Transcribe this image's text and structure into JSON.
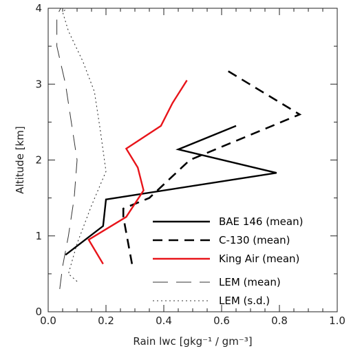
{
  "chart_data": {
    "type": "line",
    "xlabel": "Rain lwc [gkg⁻¹ / gm⁻³]",
    "ylabel": "Altitude [km]",
    "xlim": [
      0.0,
      1.0
    ],
    "ylim": [
      0,
      4
    ],
    "x_ticks": [
      "0.0",
      "0.2",
      "0.4",
      "0.6",
      "0.8",
      "1.0"
    ],
    "x_tick_values": [
      0.0,
      0.2,
      0.4,
      0.6,
      0.8,
      1.0
    ],
    "y_ticks": [
      "0",
      "1",
      "2",
      "3",
      "4"
    ],
    "y_tick_values": [
      0,
      1,
      2,
      3,
      4
    ],
    "grid": false,
    "legend_position": "bottom-right",
    "series": [
      {
        "name": "BAE 146 (mean)",
        "color": "#000000",
        "style": "solid",
        "points": [
          [
            0.06,
            0.75
          ],
          [
            0.19,
            1.13
          ],
          [
            0.2,
            1.48
          ],
          [
            0.79,
            1.83
          ],
          [
            0.45,
            2.14
          ],
          [
            0.65,
            2.45
          ]
        ]
      },
      {
        "name": "C-130 (mean)",
        "color": "#000000",
        "style": "dashed",
        "points": [
          [
            0.29,
            0.63
          ],
          [
            0.26,
            1.25
          ],
          [
            0.26,
            1.36
          ],
          [
            0.35,
            1.5
          ],
          [
            0.49,
            2.0
          ],
          [
            0.87,
            2.6
          ],
          [
            0.61,
            3.2
          ]
        ]
      },
      {
        "name": "King Air (mean)",
        "color": "#e8141a",
        "style": "solid",
        "points": [
          [
            0.19,
            0.63
          ],
          [
            0.14,
            0.95
          ],
          [
            0.27,
            1.25
          ],
          [
            0.33,
            1.6
          ],
          [
            0.31,
            1.9
          ],
          [
            0.27,
            2.15
          ],
          [
            0.39,
            2.45
          ],
          [
            0.43,
            2.75
          ],
          [
            0.48,
            3.05
          ]
        ]
      },
      {
        "name": "LEM (mean)",
        "color": "#333333",
        "style": "longdash",
        "points": [
          [
            0.04,
            0.3
          ],
          [
            0.05,
            0.6
          ],
          [
            0.07,
            1.0
          ],
          [
            0.09,
            1.5
          ],
          [
            0.1,
            2.0
          ],
          [
            0.08,
            2.5
          ],
          [
            0.06,
            3.0
          ],
          [
            0.03,
            3.5
          ],
          [
            0.03,
            3.9
          ],
          [
            0.05,
            4.05
          ]
        ]
      },
      {
        "name": "LEM (s.d.)",
        "color": "#333333",
        "style": "dotted",
        "points": [
          [
            0.1,
            0.4
          ],
          [
            0.07,
            0.5
          ],
          [
            0.1,
            0.9
          ],
          [
            0.15,
            1.4
          ],
          [
            0.2,
            1.85
          ],
          [
            0.18,
            2.4
          ],
          [
            0.16,
            2.9
          ],
          [
            0.12,
            3.3
          ],
          [
            0.07,
            3.7
          ],
          [
            0.05,
            3.95
          ],
          [
            0.08,
            4.05
          ]
        ]
      }
    ]
  }
}
